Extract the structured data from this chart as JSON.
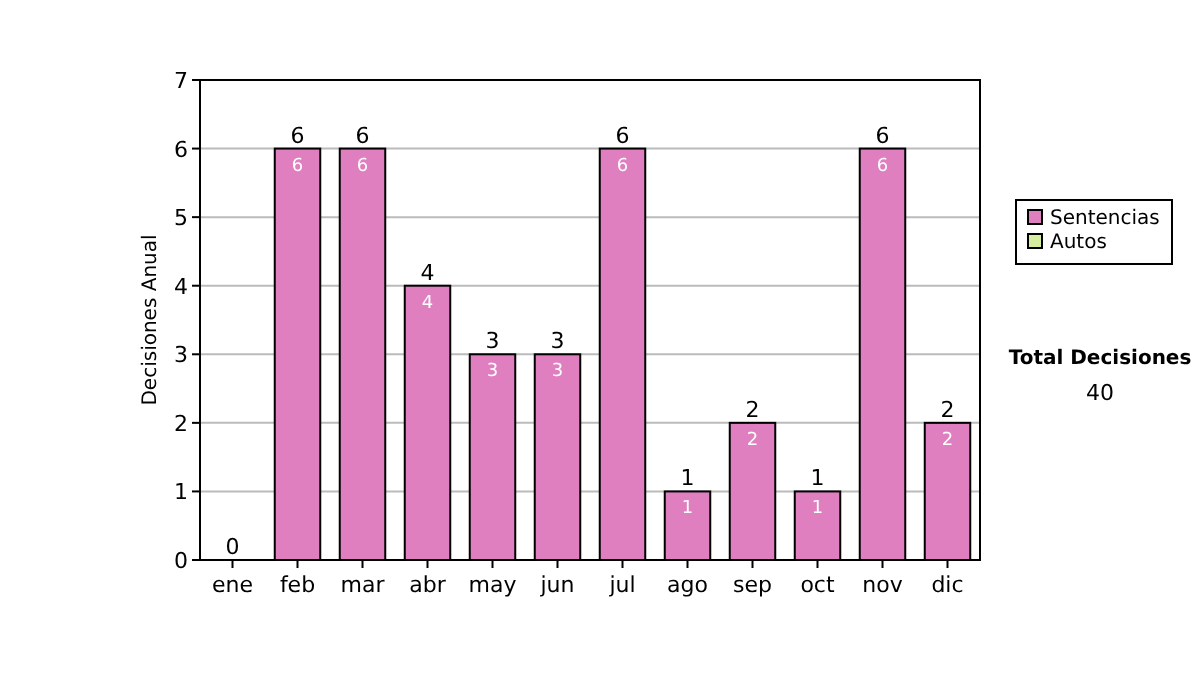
{
  "chart_data": {
    "type": "bar",
    "ylabel": "Decisiones Anual",
    "categories": [
      "ene",
      "feb",
      "mar",
      "abr",
      "may",
      "jun",
      "jul",
      "ago",
      "sep",
      "oct",
      "nov",
      "dic"
    ],
    "series": [
      {
        "name": "Sentencias",
        "color": "#df7fc0",
        "values": [
          0,
          6,
          6,
          4,
          3,
          3,
          6,
          1,
          2,
          1,
          6,
          2
        ],
        "value_labels": [
          null,
          "6",
          "6",
          "4",
          "3",
          "3",
          "6",
          "1",
          "2",
          "1",
          "6",
          "2"
        ]
      },
      {
        "name": "Autos",
        "color": "#d6eea0",
        "values": [
          0,
          0,
          0,
          0,
          0,
          0,
          0,
          0,
          0,
          0,
          0,
          0
        ]
      }
    ],
    "stacked": true,
    "totals": [
      "0",
      "6",
      "6",
      "4",
      "3",
      "3",
      "6",
      "1",
      "2",
      "1",
      "6",
      "2"
    ],
    "ylim": [
      0,
      7
    ],
    "yticks": [
      0,
      1,
      2,
      3,
      4,
      5,
      6,
      7
    ],
    "grid": "y",
    "legend": "right",
    "annotations": [
      "Total Decisiones",
      "40"
    ]
  }
}
